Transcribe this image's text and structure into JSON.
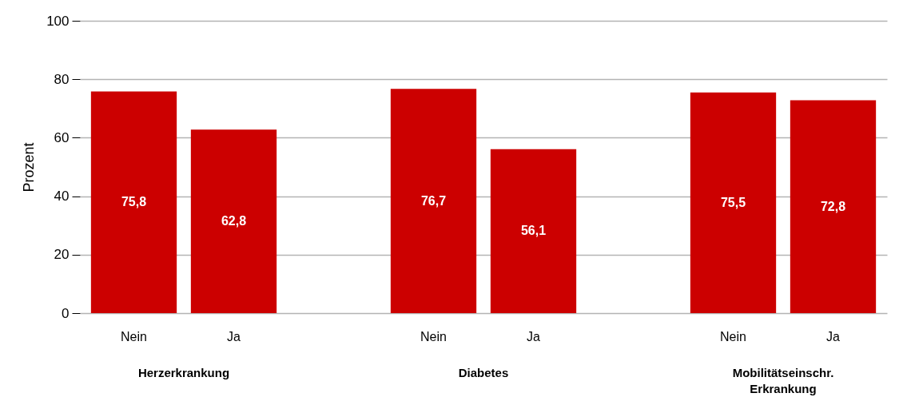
{
  "chart_data": {
    "type": "bar",
    "ylabel": "Prozent",
    "categories": [
      "Nein",
      "Ja",
      "Nein",
      "Ja",
      "Nein",
      "Ja"
    ],
    "values": [
      75.8,
      62.8,
      76.7,
      56.1,
      75.5,
      72.8
    ],
    "value_labels": [
      "75,8",
      "62,8",
      "76,7",
      "56,1",
      "75,5",
      "72,8"
    ],
    "color": "#cc0000",
    "ylim": [
      0,
      100
    ],
    "yticks": [
      0,
      20,
      40,
      60,
      80,
      100
    ],
    "grid": "y",
    "annotations": [
      "Herzerkrankung",
      "Diabetes",
      "Mobilitätseinschr.\nErkrankung"
    ]
  }
}
